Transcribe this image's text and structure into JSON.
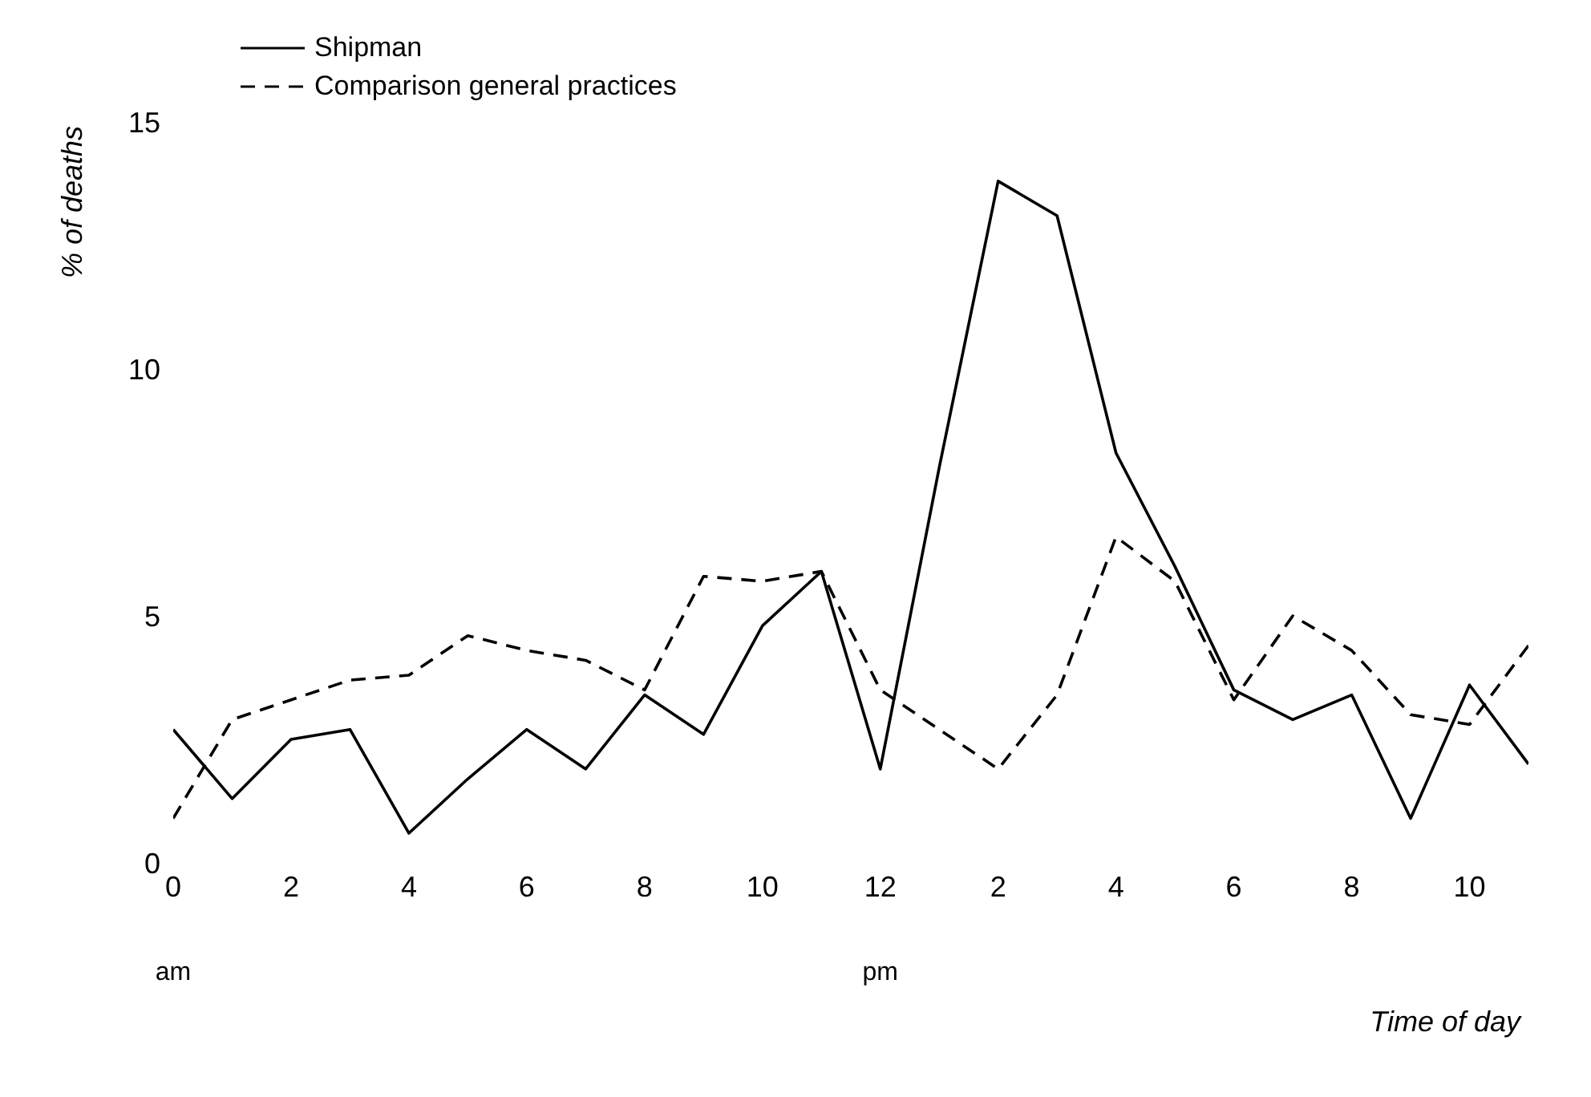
{
  "chart_data": {
    "type": "line",
    "xlabel": "Time of day",
    "ylabel": "% of deaths",
    "categories": [
      "0",
      null,
      "2",
      null,
      "4",
      null,
      "6",
      null,
      "8",
      null,
      "10",
      null,
      "12",
      null,
      "2",
      null,
      "4",
      null,
      "6",
      null,
      "8",
      null,
      "10",
      null
    ],
    "series": [
      {
        "name": "Shipman",
        "color": "#000000",
        "line_style": "solid",
        "values": [
          2.7,
          1.3,
          2.5,
          2.7,
          0.6,
          1.7,
          2.7,
          1.9,
          3.4,
          2.6,
          4.8,
          5.9,
          1.9,
          8.0,
          13.8,
          13.1,
          8.3,
          6.0,
          3.5,
          2.9,
          3.4,
          0.9,
          3.6,
          2.0
        ]
      },
      {
        "name": "Comparison general practices",
        "color": "#000000",
        "line_style": "dashed",
        "values": [
          0.9,
          2.9,
          3.3,
          3.7,
          3.8,
          4.6,
          4.3,
          4.1,
          3.5,
          5.8,
          5.7,
          5.9,
          3.5,
          2.7,
          1.9,
          3.4,
          6.6,
          5.7,
          3.3,
          5.0,
          4.3,
          3.0,
          2.8,
          4.4
        ]
      }
    ],
    "ylim": [
      0,
      15
    ],
    "yticks": [
      0,
      5,
      10,
      15
    ],
    "annotations": [
      "am",
      "pm"
    ],
    "legend": "top left",
    "grid": false,
    "marker": "none"
  }
}
